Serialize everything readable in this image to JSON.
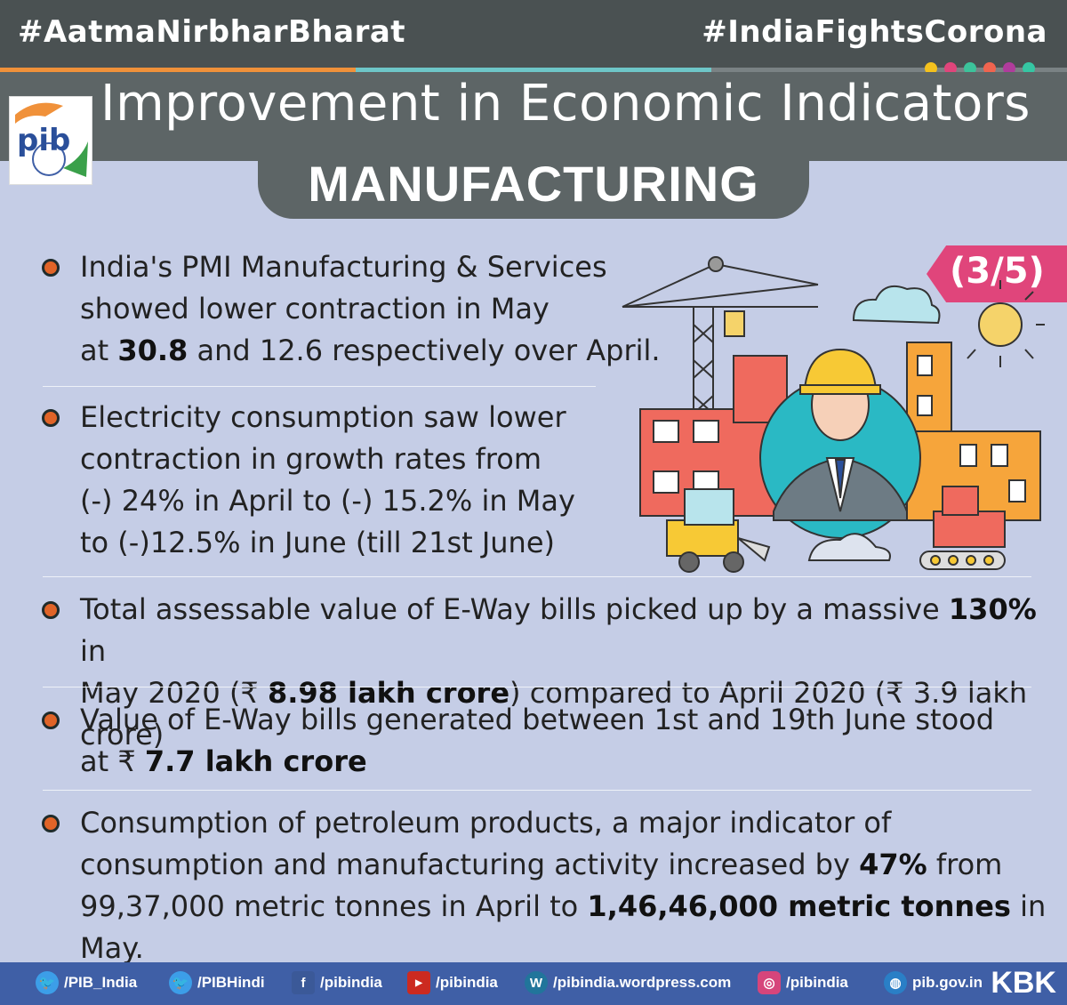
{
  "header": {
    "left_hashtag": "#AatmaNirbharBharat",
    "right_hashtag": "#IndiaFightsCorona",
    "title": "Improvement in Economic Indicators",
    "subtitle": "MANUFACTURING",
    "logo_text": "pib",
    "page_badge": "(3/5)"
  },
  "colors": {
    "background": "#c5cde6",
    "header_bar": "#4a5152",
    "title_band": "#5d6566",
    "badge": "#e0457b",
    "bullet": "#e06428",
    "footer": "#3f5fa6",
    "dots": [
      "#f4c11d",
      "#e0457b",
      "#3cc39b",
      "#f0644f",
      "#b03c9c",
      "#35c6a3"
    ]
  },
  "bullets": [
    {
      "lines": [
        [
          "India's PMI Manufacturing & Services"
        ],
        [
          "showed lower contraction in May"
        ],
        [
          "at ",
          {
            "b": "30.8"
          },
          " and 12.6 respectively over April."
        ]
      ]
    },
    {
      "lines": [
        [
          "Electricity consumption saw lower"
        ],
        [
          "contraction in growth rates from"
        ],
        [
          "(-) 24% in April to (-) 15.2% in May"
        ],
        [
          "to (-)12.5% in June (till 21st June)"
        ]
      ]
    },
    {
      "lines": [
        [
          "Total assessable value of E-Way bills picked up by a massive ",
          {
            "b": "130%"
          },
          " in"
        ],
        [
          "May 2020 (₹ ",
          {
            "b": "8.98 lakh crore"
          },
          ") compared to April 2020 (₹ 3.9 lakh crore)"
        ]
      ]
    },
    {
      "lines": [
        [
          "Value of E-Way bills generated between 1st and 19th June stood"
        ],
        [
          "at ₹ ",
          {
            "b": "7.7 lakh crore"
          }
        ]
      ]
    },
    {
      "lines": [
        [
          "Consumption of petroleum products, a major indicator of"
        ],
        [
          "consumption and manufacturing activity increased by ",
          {
            "b": "47%"
          },
          " from"
        ],
        [
          "99,37,000 metric tonnes in April to ",
          {
            "b": "1,46,46,000 metric tonnes"
          },
          " in May."
        ]
      ]
    }
  ],
  "footer": {
    "items": [
      {
        "icon": "twitter-icon",
        "label": "/PIB_India"
      },
      {
        "icon": "twitter-icon",
        "label": "/PIBHindi"
      },
      {
        "icon": "facebook-icon",
        "label": "/pibindia"
      },
      {
        "icon": "youtube-icon",
        "label": "/pibindia"
      },
      {
        "icon": "wordpress-icon",
        "label": "/pibindia.wordpress.com"
      },
      {
        "icon": "instagram-icon",
        "label": "/pibindia"
      },
      {
        "icon": "globe-icon",
        "label": "pib.gov.in"
      }
    ],
    "brand": "KBK"
  }
}
